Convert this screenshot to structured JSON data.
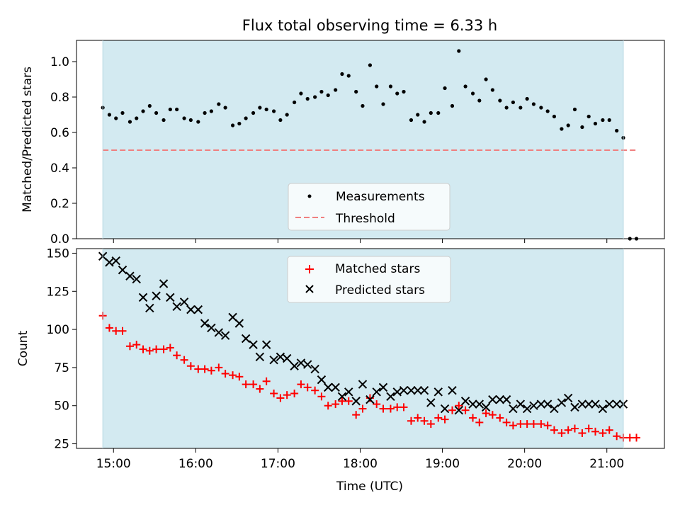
{
  "chart_data": [
    {
      "type": "scatter",
      "title": "Flux total observing time = 6.33 h",
      "xlabel": "",
      "ylabel": "Matched/Predicted stars",
      "x_unit": "hours_utc",
      "xlim": [
        14.55,
        21.7
      ],
      "ylim": [
        0.0,
        1.12
      ],
      "yticks": [
        0.0,
        0.2,
        0.4,
        0.6,
        0.8,
        1.0
      ],
      "ytick_labels": [
        "0.0",
        "0.2",
        "0.4",
        "0.6",
        "0.8",
        "1.0"
      ],
      "shaded_interval": [
        14.87,
        21.2
      ],
      "shade_color": "#d3eaf1",
      "legend": {
        "placement": "lower-center",
        "entries": [
          "Measurements",
          "Threshold"
        ]
      },
      "series": [
        {
          "name": "Measurements",
          "marker": "dot",
          "color": "#000000",
          "points": [
            [
              14.87,
              0.74
            ],
            [
              14.95,
              0.7
            ],
            [
              15.03,
              0.68
            ],
            [
              15.11,
              0.71
            ],
            [
              15.2,
              0.66
            ],
            [
              15.28,
              0.68
            ],
            [
              15.36,
              0.72
            ],
            [
              15.44,
              0.75
            ],
            [
              15.52,
              0.71
            ],
            [
              15.61,
              0.67
            ],
            [
              15.69,
              0.73
            ],
            [
              15.77,
              0.73
            ],
            [
              15.86,
              0.68
            ],
            [
              15.94,
              0.67
            ],
            [
              16.03,
              0.66
            ],
            [
              16.11,
              0.71
            ],
            [
              16.19,
              0.72
            ],
            [
              16.28,
              0.76
            ],
            [
              16.36,
              0.74
            ],
            [
              16.45,
              0.64
            ],
            [
              16.53,
              0.65
            ],
            [
              16.61,
              0.68
            ],
            [
              16.7,
              0.71
            ],
            [
              16.78,
              0.74
            ],
            [
              16.86,
              0.73
            ],
            [
              16.95,
              0.72
            ],
            [
              17.03,
              0.67
            ],
            [
              17.11,
              0.7
            ],
            [
              17.2,
              0.77
            ],
            [
              17.28,
              0.82
            ],
            [
              17.36,
              0.79
            ],
            [
              17.45,
              0.8
            ],
            [
              17.53,
              0.83
            ],
            [
              17.61,
              0.81
            ],
            [
              17.7,
              0.84
            ],
            [
              17.78,
              0.93
            ],
            [
              17.86,
              0.92
            ],
            [
              17.95,
              0.83
            ],
            [
              18.03,
              0.75
            ],
            [
              18.12,
              0.98
            ],
            [
              18.2,
              0.86
            ],
            [
              18.28,
              0.76
            ],
            [
              18.37,
              0.86
            ],
            [
              18.45,
              0.82
            ],
            [
              18.53,
              0.83
            ],
            [
              18.62,
              0.67
            ],
            [
              18.7,
              0.7
            ],
            [
              18.78,
              0.66
            ],
            [
              18.86,
              0.71
            ],
            [
              18.95,
              0.71
            ],
            [
              19.03,
              0.85
            ],
            [
              19.12,
              0.75
            ],
            [
              19.2,
              1.06
            ],
            [
              19.28,
              0.86
            ],
            [
              19.37,
              0.82
            ],
            [
              19.45,
              0.78
            ],
            [
              19.53,
              0.9
            ],
            [
              19.61,
              0.84
            ],
            [
              19.7,
              0.78
            ],
            [
              19.78,
              0.74
            ],
            [
              19.86,
              0.77
            ],
            [
              19.95,
              0.74
            ],
            [
              20.03,
              0.79
            ],
            [
              20.11,
              0.76
            ],
            [
              20.2,
              0.74
            ],
            [
              20.28,
              0.72
            ],
            [
              20.36,
              0.69
            ],
            [
              20.45,
              0.62
            ],
            [
              20.53,
              0.64
            ],
            [
              20.61,
              0.73
            ],
            [
              20.7,
              0.63
            ],
            [
              20.78,
              0.69
            ],
            [
              20.86,
              0.65
            ],
            [
              20.95,
              0.67
            ],
            [
              21.03,
              0.67
            ],
            [
              21.12,
              0.61
            ],
            [
              21.2,
              0.57
            ],
            [
              21.28,
              0.0
            ],
            [
              21.36,
              0.0
            ]
          ]
        },
        {
          "name": "Threshold",
          "marker": "dashed-line",
          "color": "#f08080",
          "x": [
            14.87,
            21.37
          ],
          "y": [
            0.5,
            0.5
          ]
        }
      ]
    },
    {
      "type": "scatter",
      "title": "",
      "xlabel": "Time (UTC)",
      "ylabel": "Count",
      "x_unit": "hours_utc",
      "xlim": [
        14.55,
        21.7
      ],
      "ylim": [
        22,
        153
      ],
      "yticks": [
        25,
        50,
        75,
        100,
        125,
        150
      ],
      "ytick_labels": [
        "25",
        "50",
        "75",
        "100",
        "125",
        "150"
      ],
      "xticks": [
        15,
        16,
        17,
        18,
        19,
        20,
        21
      ],
      "xtick_labels": [
        "15:00",
        "16:00",
        "17:00",
        "18:00",
        "19:00",
        "20:00",
        "21:00"
      ],
      "shaded_interval": [
        14.87,
        21.2
      ],
      "shade_color": "#d3eaf1",
      "legend": {
        "placement": "upper-center",
        "entries": [
          "Matched stars",
          "Predicted stars"
        ]
      },
      "series": [
        {
          "name": "Matched stars",
          "marker": "plus",
          "color": "#ff0000",
          "points": [
            [
              14.87,
              109
            ],
            [
              14.95,
              101
            ],
            [
              15.03,
              99
            ],
            [
              15.11,
              99
            ],
            [
              15.2,
              89
            ],
            [
              15.28,
              90
            ],
            [
              15.36,
              87
            ],
            [
              15.44,
              86
            ],
            [
              15.52,
              87
            ],
            [
              15.61,
              87
            ],
            [
              15.69,
              88
            ],
            [
              15.77,
              83
            ],
            [
              15.86,
              80
            ],
            [
              15.94,
              76
            ],
            [
              16.03,
              74
            ],
            [
              16.11,
              74
            ],
            [
              16.19,
              73
            ],
            [
              16.28,
              75
            ],
            [
              16.36,
              71
            ],
            [
              16.45,
              70
            ],
            [
              16.53,
              69
            ],
            [
              16.61,
              64
            ],
            [
              16.7,
              64
            ],
            [
              16.78,
              61
            ],
            [
              16.86,
              66
            ],
            [
              16.95,
              58
            ],
            [
              17.03,
              55
            ],
            [
              17.11,
              57
            ],
            [
              17.2,
              58
            ],
            [
              17.28,
              64
            ],
            [
              17.36,
              62
            ],
            [
              17.45,
              60
            ],
            [
              17.53,
              56
            ],
            [
              17.61,
              50
            ],
            [
              17.7,
              51
            ],
            [
              17.78,
              53
            ],
            [
              17.86,
              53
            ],
            [
              17.95,
              44
            ],
            [
              18.03,
              48
            ],
            [
              18.12,
              55
            ],
            [
              18.2,
              51
            ],
            [
              18.28,
              48
            ],
            [
              18.37,
              48
            ],
            [
              18.45,
              49
            ],
            [
              18.53,
              49
            ],
            [
              18.62,
              40
            ],
            [
              18.7,
              42
            ],
            [
              18.78,
              40
            ],
            [
              18.86,
              38
            ],
            [
              18.95,
              42
            ],
            [
              19.03,
              41
            ],
            [
              19.12,
              47
            ],
            [
              19.2,
              50
            ],
            [
              19.28,
              47
            ],
            [
              19.37,
              42
            ],
            [
              19.45,
              39
            ],
            [
              19.53,
              45
            ],
            [
              19.61,
              44
            ],
            [
              19.7,
              42
            ],
            [
              19.78,
              39
            ],
            [
              19.86,
              37
            ],
            [
              19.95,
              38
            ],
            [
              20.03,
              38
            ],
            [
              20.11,
              38
            ],
            [
              20.2,
              38
            ],
            [
              20.28,
              37
            ],
            [
              20.36,
              34
            ],
            [
              20.45,
              32
            ],
            [
              20.53,
              34
            ],
            [
              20.61,
              35
            ],
            [
              20.7,
              32
            ],
            [
              20.78,
              35
            ],
            [
              20.86,
              33
            ],
            [
              20.95,
              32
            ],
            [
              21.03,
              34
            ],
            [
              21.12,
              30
            ],
            [
              21.2,
              29
            ],
            [
              21.28,
              29
            ],
            [
              21.36,
              29
            ]
          ]
        },
        {
          "name": "Predicted stars",
          "marker": "x",
          "color": "#000000",
          "points": [
            [
              14.87,
              148
            ],
            [
              14.95,
              144
            ],
            [
              15.03,
              145
            ],
            [
              15.11,
              139
            ],
            [
              15.2,
              135
            ],
            [
              15.28,
              133
            ],
            [
              15.36,
              121
            ],
            [
              15.44,
              114
            ],
            [
              15.52,
              122
            ],
            [
              15.61,
              130
            ],
            [
              15.69,
              121
            ],
            [
              15.77,
              115
            ],
            [
              15.86,
              118
            ],
            [
              15.94,
              113
            ],
            [
              16.03,
              113
            ],
            [
              16.11,
              104
            ],
            [
              16.19,
              101
            ],
            [
              16.28,
              98
            ],
            [
              16.36,
              96
            ],
            [
              16.45,
              108
            ],
            [
              16.53,
              104
            ],
            [
              16.61,
              94
            ],
            [
              16.7,
              90
            ],
            [
              16.78,
              82
            ],
            [
              16.86,
              90
            ],
            [
              16.95,
              80
            ],
            [
              17.03,
              82
            ],
            [
              17.11,
              81
            ],
            [
              17.2,
              76
            ],
            [
              17.28,
              78
            ],
            [
              17.36,
              77
            ],
            [
              17.45,
              74
            ],
            [
              17.53,
              67
            ],
            [
              17.61,
              62
            ],
            [
              17.7,
              62
            ],
            [
              17.78,
              56
            ],
            [
              17.86,
              59
            ],
            [
              17.95,
              53
            ],
            [
              18.03,
              64
            ],
            [
              18.12,
              54
            ],
            [
              18.2,
              59
            ],
            [
              18.28,
              62
            ],
            [
              18.37,
              56
            ],
            [
              18.45,
              59
            ],
            [
              18.53,
              60
            ],
            [
              18.62,
              60
            ],
            [
              18.7,
              60
            ],
            [
              18.78,
              60
            ],
            [
              18.86,
              52
            ],
            [
              18.95,
              59
            ],
            [
              19.03,
              48
            ],
            [
              19.12,
              60
            ],
            [
              19.2,
              47
            ],
            [
              19.28,
              53
            ],
            [
              19.37,
              51
            ],
            [
              19.45,
              51
            ],
            [
              19.53,
              49
            ],
            [
              19.61,
              54
            ],
            [
              19.7,
              54
            ],
            [
              19.78,
              54
            ],
            [
              19.86,
              48
            ],
            [
              19.95,
              51
            ],
            [
              20.03,
              48
            ],
            [
              20.11,
              50
            ],
            [
              20.2,
              51
            ],
            [
              20.28,
              51
            ],
            [
              20.36,
              48
            ],
            [
              20.45,
              52
            ],
            [
              20.53,
              55
            ],
            [
              20.61,
              49
            ],
            [
              20.7,
              51
            ],
            [
              20.78,
              51
            ],
            [
              20.86,
              51
            ],
            [
              20.95,
              48
            ],
            [
              21.03,
              51
            ],
            [
              21.12,
              51
            ],
            [
              21.2,
              51
            ]
          ]
        }
      ]
    }
  ]
}
